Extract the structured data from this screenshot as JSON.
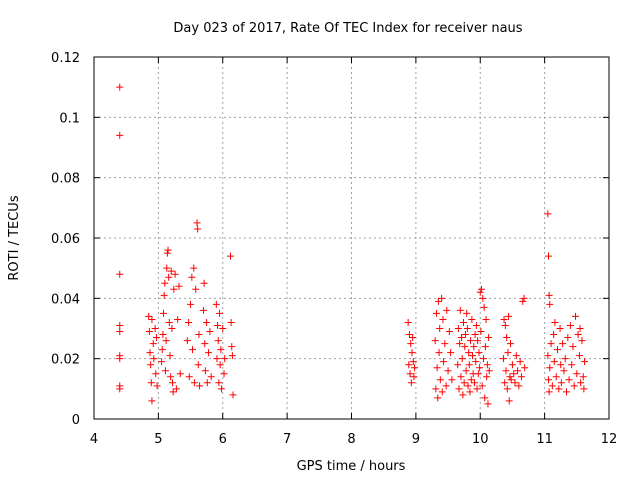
{
  "chart_data": {
    "type": "scatter",
    "title": "Day 023 of 2017, Rate Of TEC Index for receiver naus",
    "xlabel": "GPS time / hours",
    "ylabel": "ROTI / TECUs",
    "xlim": [
      4,
      12
    ],
    "ylim": [
      0,
      0.12
    ],
    "xticks": [
      4,
      5,
      6,
      7,
      8,
      9,
      10,
      11,
      12
    ],
    "yticks": [
      0,
      0.02,
      0.04,
      0.06,
      0.08,
      0.1,
      0.12
    ],
    "xtick_labels": [
      "4",
      "5",
      "6",
      "7",
      "8",
      "9",
      "10",
      "11",
      "12"
    ],
    "ytick_labels": [
      "0",
      "0.02",
      "0.04",
      "0.06",
      "0.08",
      "0.1",
      "0.12"
    ],
    "grid": true,
    "marker": "plus",
    "color": "#ff0000",
    "series": [
      {
        "points": [
          [
            4.4,
            0.11
          ],
          [
            4.4,
            0.094
          ],
          [
            4.4,
            0.048
          ],
          [
            4.4,
            0.031
          ],
          [
            4.4,
            0.029
          ],
          [
            4.4,
            0.021
          ],
          [
            4.4,
            0.02
          ],
          [
            4.4,
            0.011
          ],
          [
            4.4,
            0.01
          ],
          [
            4.85,
            0.034
          ],
          [
            4.86,
            0.029
          ],
          [
            4.87,
            0.022
          ],
          [
            4.88,
            0.018
          ],
          [
            4.89,
            0.012
          ],
          [
            4.9,
            0.006
          ],
          [
            4.9,
            0.033
          ],
          [
            4.92,
            0.025
          ],
          [
            4.93,
            0.02
          ],
          [
            4.95,
            0.03
          ],
          [
            4.96,
            0.015
          ],
          [
            4.97,
            0.027
          ],
          [
            4.98,
            0.011
          ],
          [
            5.05,
            0.019
          ],
          [
            5.06,
            0.023
          ],
          [
            5.07,
            0.028
          ],
          [
            5.08,
            0.035
          ],
          [
            5.09,
            0.041
          ],
          [
            5.1,
            0.045
          ],
          [
            5.11,
            0.016
          ],
          [
            5.12,
            0.026
          ],
          [
            5.13,
            0.05
          ],
          [
            5.14,
            0.055
          ],
          [
            5.15,
            0.056
          ],
          [
            5.16,
            0.047
          ],
          [
            5.17,
            0.032
          ],
          [
            5.18,
            0.021
          ],
          [
            5.19,
            0.014
          ],
          [
            5.2,
            0.049
          ],
          [
            5.21,
            0.03
          ],
          [
            5.22,
            0.012
          ],
          [
            5.23,
            0.009
          ],
          [
            5.24,
            0.043
          ],
          [
            5.26,
            0.048
          ],
          [
            5.28,
            0.01
          ],
          [
            5.3,
            0.033
          ],
          [
            5.32,
            0.044
          ],
          [
            5.34,
            0.015
          ],
          [
            5.45,
            0.026
          ],
          [
            5.47,
            0.032
          ],
          [
            5.48,
            0.014
          ],
          [
            5.5,
            0.038
          ],
          [
            5.52,
            0.047
          ],
          [
            5.53,
            0.023
          ],
          [
            5.55,
            0.05
          ],
          [
            5.56,
            0.012
          ],
          [
            5.58,
            0.043
          ],
          [
            5.6,
            0.065
          ],
          [
            5.61,
            0.063
          ],
          [
            5.62,
            0.018
          ],
          [
            5.63,
            0.028
          ],
          [
            5.64,
            0.011
          ],
          [
            5.7,
            0.036
          ],
          [
            5.71,
            0.045
          ],
          [
            5.72,
            0.025
          ],
          [
            5.73,
            0.016
          ],
          [
            5.75,
            0.032
          ],
          [
            5.76,
            0.012
          ],
          [
            5.78,
            0.022
          ],
          [
            5.8,
            0.029
          ],
          [
            5.82,
            0.014
          ],
          [
            5.9,
            0.038
          ],
          [
            5.91,
            0.02
          ],
          [
            5.92,
            0.031
          ],
          [
            5.93,
            0.026
          ],
          [
            5.94,
            0.012
          ],
          [
            5.95,
            0.035
          ],
          [
            5.96,
            0.018
          ],
          [
            5.97,
            0.023
          ],
          [
            5.98,
            0.01
          ],
          [
            6.0,
            0.03
          ],
          [
            6.02,
            0.015
          ],
          [
            6.03,
            0.02
          ],
          [
            6.12,
            0.054
          ],
          [
            6.13,
            0.032
          ],
          [
            6.14,
            0.024
          ],
          [
            6.15,
            0.021
          ],
          [
            6.16,
            0.008
          ],
          [
            8.88,
            0.032
          ],
          [
            8.89,
            0.018
          ],
          [
            8.9,
            0.028
          ],
          [
            8.91,
            0.015
          ],
          [
            8.92,
            0.025
          ],
          [
            8.93,
            0.012
          ],
          [
            8.94,
            0.022
          ],
          [
            8.95,
            0.027
          ],
          [
            8.96,
            0.019
          ],
          [
            8.97,
            0.014
          ],
          [
            8.98,
            0.017
          ],
          [
            9.3,
            0.026
          ],
          [
            9.31,
            0.01
          ],
          [
            9.32,
            0.035
          ],
          [
            9.33,
            0.017
          ],
          [
            9.34,
            0.007
          ],
          [
            9.35,
            0.039
          ],
          [
            9.36,
            0.022
          ],
          [
            9.37,
            0.03
          ],
          [
            9.38,
            0.013
          ],
          [
            9.4,
            0.04
          ],
          [
            9.41,
            0.009
          ],
          [
            9.42,
            0.033
          ],
          [
            9.43,
            0.019
          ],
          [
            9.45,
            0.025
          ],
          [
            9.47,
            0.011
          ],
          [
            9.48,
            0.036
          ],
          [
            9.5,
            0.016
          ],
          [
            9.52,
            0.029
          ],
          [
            9.54,
            0.022
          ],
          [
            9.56,
            0.013
          ],
          [
            9.65,
            0.018
          ],
          [
            9.66,
            0.03
          ],
          [
            9.67,
            0.01
          ],
          [
            9.68,
            0.025
          ],
          [
            9.69,
            0.036
          ],
          [
            9.7,
            0.014
          ],
          [
            9.71,
            0.027
          ],
          [
            9.72,
            0.02
          ],
          [
            9.73,
            0.008
          ],
          [
            9.74,
            0.032
          ],
          [
            9.75,
            0.012
          ],
          [
            9.76,
            0.024
          ],
          [
            9.77,
            0.028
          ],
          [
            9.78,
            0.016
          ],
          [
            9.79,
            0.035
          ],
          [
            9.8,
            0.03
          ],
          [
            9.81,
            0.011
          ],
          [
            9.82,
            0.022
          ],
          [
            9.83,
            0.018
          ],
          [
            9.84,
            0.009
          ],
          [
            9.85,
            0.026
          ],
          [
            9.86,
            0.013
          ],
          [
            9.87,
            0.033
          ],
          [
            9.88,
            0.021
          ],
          [
            9.89,
            0.015
          ],
          [
            9.9,
            0.024
          ],
          [
            9.91,
            0.012
          ],
          [
            9.92,
            0.028
          ],
          [
            9.93,
            0.019
          ],
          [
            9.94,
            0.031
          ],
          [
            9.95,
            0.01
          ],
          [
            9.96,
            0.026
          ],
          [
            9.97,
            0.015
          ],
          [
            9.98,
            0.022
          ],
          [
            9.99,
            0.017
          ],
          [
            10.0,
            0.042
          ],
          [
            10.01,
            0.029
          ],
          [
            10.02,
            0.043
          ],
          [
            10.03,
            0.011
          ],
          [
            10.04,
            0.04
          ],
          [
            10.05,
            0.02
          ],
          [
            10.06,
            0.037
          ],
          [
            10.07,
            0.007
          ],
          [
            10.08,
            0.024
          ],
          [
            10.09,
            0.033
          ],
          [
            10.1,
            0.014
          ],
          [
            10.11,
            0.018
          ],
          [
            10.12,
            0.005
          ],
          [
            10.13,
            0.027
          ],
          [
            10.14,
            0.016
          ],
          [
            10.36,
            0.02
          ],
          [
            10.37,
            0.033
          ],
          [
            10.38,
            0.012
          ],
          [
            10.39,
            0.031
          ],
          [
            10.4,
            0.016
          ],
          [
            10.41,
            0.027
          ],
          [
            10.42,
            0.01
          ],
          [
            10.43,
            0.022
          ],
          [
            10.44,
            0.034
          ],
          [
            10.45,
            0.006
          ],
          [
            10.46,
            0.014
          ],
          [
            10.47,
            0.025
          ],
          [
            10.48,
            0.013
          ],
          [
            10.5,
            0.018
          ],
          [
            10.52,
            0.015
          ],
          [
            10.54,
            0.012
          ],
          [
            10.56,
            0.021
          ],
          [
            10.58,
            0.016
          ],
          [
            10.6,
            0.011
          ],
          [
            10.62,
            0.019
          ],
          [
            10.64,
            0.014
          ],
          [
            10.66,
            0.039
          ],
          [
            10.68,
            0.04
          ],
          [
            10.69,
            0.017
          ],
          [
            11.05,
            0.068
          ],
          [
            11.06,
            0.054
          ],
          [
            11.07,
            0.041
          ],
          [
            11.08,
            0.038
          ],
          [
            11.05,
            0.021
          ],
          [
            11.06,
            0.013
          ],
          [
            11.07,
            0.009
          ],
          [
            11.08,
            0.017
          ],
          [
            11.1,
            0.025
          ],
          [
            11.12,
            0.011
          ],
          [
            11.14,
            0.028
          ],
          [
            11.15,
            0.019
          ],
          [
            11.16,
            0.032
          ],
          [
            11.18,
            0.014
          ],
          [
            11.2,
            0.023
          ],
          [
            11.22,
            0.01
          ],
          [
            11.24,
            0.03
          ],
          [
            11.25,
            0.018
          ],
          [
            11.26,
            0.012
          ],
          [
            11.28,
            0.025
          ],
          [
            11.3,
            0.016
          ],
          [
            11.32,
            0.02
          ],
          [
            11.34,
            0.009
          ],
          [
            11.36,
            0.027
          ],
          [
            11.38,
            0.013
          ],
          [
            11.4,
            0.031
          ],
          [
            11.42,
            0.018
          ],
          [
            11.44,
            0.024
          ],
          [
            11.46,
            0.011
          ],
          [
            11.48,
            0.034
          ],
          [
            11.5,
            0.015
          ],
          [
            11.52,
            0.028
          ],
          [
            11.54,
            0.021
          ],
          [
            11.55,
            0.03
          ],
          [
            11.56,
            0.012
          ],
          [
            11.58,
            0.026
          ],
          [
            11.6,
            0.014
          ],
          [
            11.61,
            0.01
          ],
          [
            11.62,
            0.019
          ]
        ]
      }
    ]
  }
}
